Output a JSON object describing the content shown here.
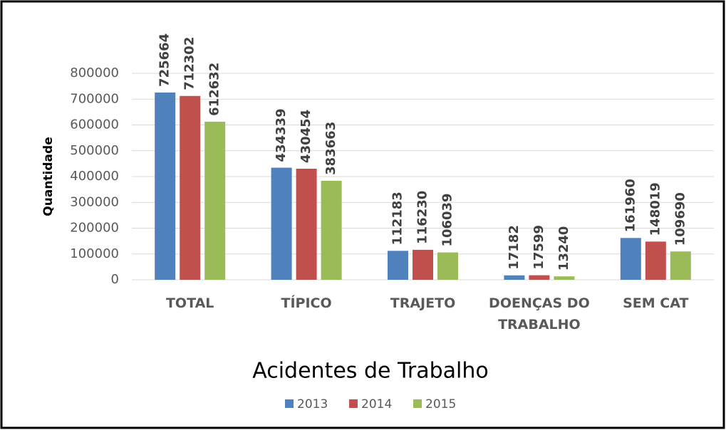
{
  "chart_data": {
    "type": "bar",
    "title": "Acidentes de Trabalho",
    "y_label": "Quantidade",
    "categories": [
      "TOTAL",
      "TÍPICO",
      "TRAJETO",
      "DOENÇAS DO TRABALHO",
      "SEM CAT"
    ],
    "series": [
      {
        "name": "2013",
        "color": "#4f81bd",
        "values": [
          725664,
          434339,
          112183,
          17182,
          161960
        ]
      },
      {
        "name": "2014",
        "color": "#c0504d",
        "values": [
          712302,
          430454,
          116230,
          17599,
          148019
        ]
      },
      {
        "name": "2015",
        "color": "#9bbb59",
        "values": [
          612632,
          383663,
          106039,
          13240,
          109690
        ]
      }
    ],
    "ylim": [
      0,
      800000
    ],
    "yticks": [
      0,
      100000,
      200000,
      300000,
      400000,
      500000,
      600000,
      700000,
      800000
    ],
    "grid": true,
    "legend": "bottom"
  }
}
